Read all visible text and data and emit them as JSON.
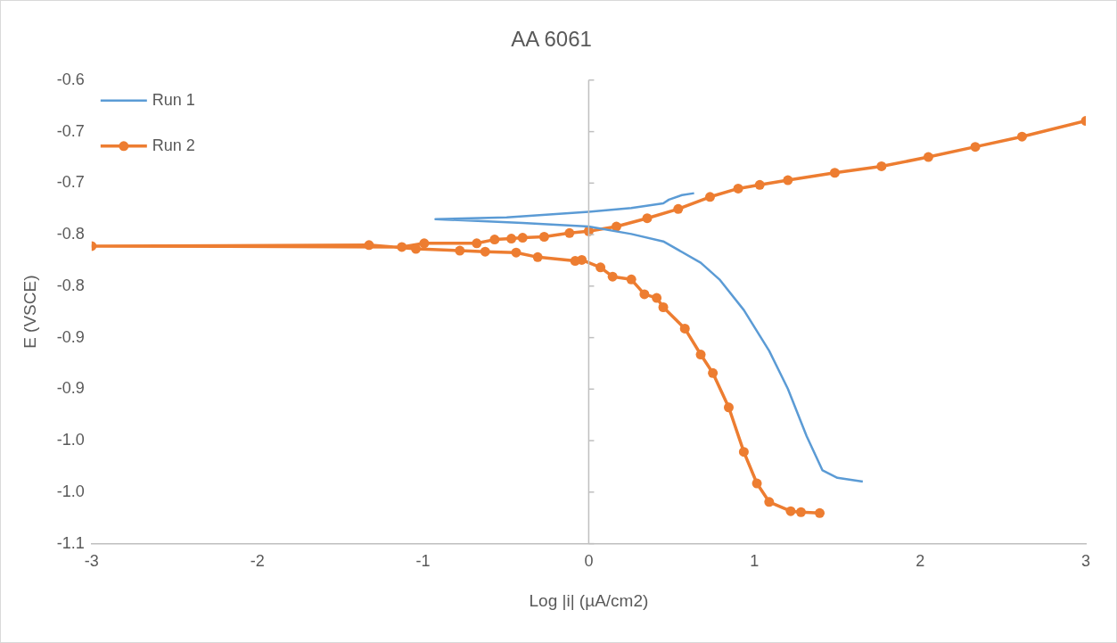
{
  "chart_data": {
    "type": "line",
    "title": "AA 6061",
    "xlabel": "Log |i| (µA/cm2)",
    "ylabel": "E (VSCE)",
    "legend": "top left",
    "line_style": "solid",
    "xlim": [
      -3,
      3
    ],
    "xticks": [
      -3,
      -2,
      -1,
      0,
      1,
      2,
      3
    ],
    "ylim": [
      -1.1,
      -0.6
    ],
    "yticks": [
      {
        "value": -0.6,
        "label": "-0.6"
      },
      {
        "value": -0.6556,
        "label": "-0.7"
      },
      {
        "value": -0.7111,
        "label": "-0.7"
      },
      {
        "value": -0.7667,
        "label": "-0.8"
      },
      {
        "value": -0.8222,
        "label": "-0.8"
      },
      {
        "value": -0.8778,
        "label": "-0.9"
      },
      {
        "value": -0.9333,
        "label": "-0.9"
      },
      {
        "value": -0.9889,
        "label": "-1.0"
      },
      {
        "value": -1.0444,
        "label": "-1.0"
      },
      {
        "value": -1.1,
        "label": "-1.1"
      }
    ],
    "series": [
      {
        "name": "Run 1",
        "color": "#5b9bd5",
        "marker": "none",
        "x": [
          1.654,
          1.501,
          1.411,
          1.315,
          1.202,
          1.089,
          0.936,
          0.789,
          0.676,
          0.45,
          0.257,
          0,
          -0.399,
          -0.925,
          -0.495,
          0,
          0.257,
          0.45,
          0.484,
          0.563,
          0.636
        ],
        "values": [
          -1.033,
          -1.029,
          -1.021,
          -0.984,
          -0.933,
          -0.892,
          -0.848,
          -0.815,
          -0.797,
          -0.774,
          -0.766,
          -0.758,
          -0.754,
          -0.75,
          -0.748,
          -0.742,
          -0.738,
          -0.733,
          -0.729,
          -0.724,
          -0.722
        ]
      },
      {
        "name": "Run 2",
        "color": "#ed7d31",
        "marker": "circle",
        "x": [
          1.394,
          1.281,
          1.219,
          1.089,
          1.015,
          0.936,
          0.845,
          0.749,
          0.676,
          0.58,
          0.45,
          0.41,
          0.336,
          0.257,
          0.144,
          0.071,
          -0.042,
          -0.082,
          -0.308,
          -0.438,
          -0.625,
          -0.778,
          -1.043,
          -1.326,
          -3.0,
          -1.128,
          -0.993,
          -0.676,
          -0.568,
          -0.467,
          -0.399,
          -0.269,
          -0.116,
          0,
          0.167,
          0.353,
          0.54,
          0.732,
          0.902,
          1.032,
          1.202,
          1.485,
          1.767,
          2.05,
          2.333,
          2.615,
          3.0
        ],
        "values": [
          -1.067,
          -1.066,
          -1.065,
          -1.055,
          -1.035,
          -1.001,
          -0.953,
          -0.916,
          -0.896,
          -0.868,
          -0.845,
          -0.835,
          -0.831,
          -0.815,
          -0.812,
          -0.802,
          -0.794,
          -0.795,
          -0.791,
          -0.786,
          -0.785,
          -0.784,
          -0.782,
          -0.778,
          -0.779,
          -0.78,
          -0.776,
          -0.776,
          -0.772,
          -0.771,
          -0.77,
          -0.769,
          -0.765,
          -0.763,
          -0.758,
          -0.749,
          -0.739,
          -0.726,
          -0.717,
          -0.713,
          -0.708,
          -0.7,
          -0.693,
          -0.683,
          -0.672,
          -0.661,
          -0.644
        ]
      }
    ]
  }
}
